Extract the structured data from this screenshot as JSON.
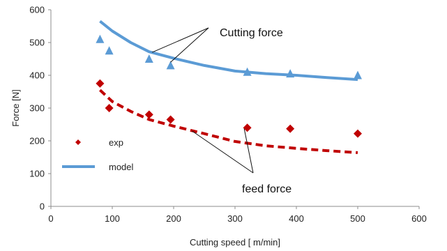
{
  "chart_data": {
    "type": "scatter",
    "xlabel": "Cutting speed [ m/min]",
    "ylabel": "Force [N]",
    "xlim": [
      0,
      600
    ],
    "ylim": [
      0,
      600
    ],
    "xticks": [
      0,
      100,
      200,
      300,
      400,
      500,
      600
    ],
    "yticks": [
      0,
      100,
      200,
      300,
      400,
      500,
      600
    ],
    "grid": false,
    "legend": {
      "placement": "bottom-left",
      "entries": [
        {
          "label": "exp",
          "marker": "diamond",
          "color": "#c00000"
        },
        {
          "label": "model",
          "line": "solid",
          "color": "#5b9bd5"
        }
      ]
    },
    "series": [
      {
        "kind": "exp",
        "marker": "triangle",
        "color": "#5b9bd5",
        "x": [
          80,
          95,
          160,
          195,
          320,
          390,
          500
        ],
        "y": [
          510,
          475,
          450,
          430,
          410,
          405,
          400
        ]
      },
      {
        "kind": "model",
        "line": "solid",
        "color": "#5b9bd5",
        "x": [
          80,
          100,
          130,
          160,
          200,
          250,
          300,
          350,
          400,
          450,
          500
        ],
        "y": [
          565,
          535,
          500,
          472,
          452,
          430,
          413,
          405,
          400,
          393,
          387
        ]
      },
      {
        "kind": "exp",
        "marker": "diamond",
        "color": "#c00000",
        "x": [
          80,
          95,
          160,
          195,
          320,
          390,
          500
        ],
        "y": [
          375,
          300,
          280,
          265,
          240,
          237,
          222
        ]
      },
      {
        "kind": "model",
        "line": "dashed",
        "color": "#c00000",
        "x": [
          80,
          100,
          130,
          160,
          200,
          250,
          300,
          350,
          400,
          450,
          500
        ],
        "y": [
          355,
          320,
          290,
          265,
          245,
          222,
          198,
          185,
          177,
          170,
          164
        ]
      }
    ],
    "annotations": [
      {
        "text": "Cutting force",
        "target_series": 0
      },
      {
        "text": "feed force",
        "target_series": 2
      }
    ]
  }
}
